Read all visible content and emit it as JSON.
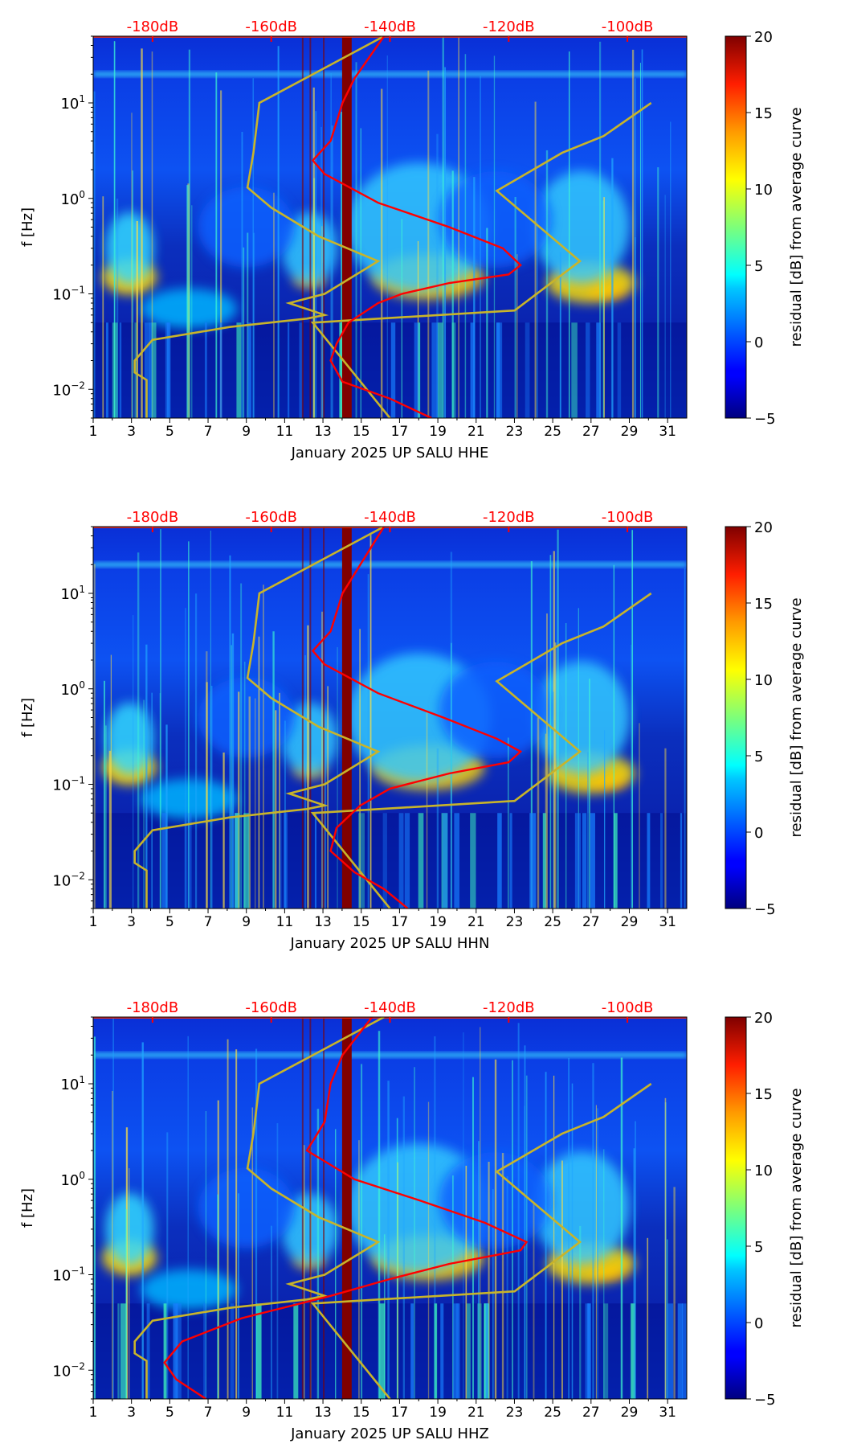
{
  "chart_data": [
    {
      "type": "heatmap",
      "component": "HHE",
      "xlabel": "January 2025 UP SALU  HHE",
      "ylabel": "f [Hz]",
      "x_ticks": [
        "1",
        "3",
        "5",
        "7",
        "9",
        "11",
        "13",
        "15",
        "17",
        "19",
        "21",
        "23",
        "25",
        "27",
        "29",
        "31"
      ],
      "y_ticks": [
        "10^-2",
        "10^-1",
        "10^0",
        "10^1"
      ],
      "ylim_hz": [
        0.005,
        50
      ],
      "xlim_day": [
        1,
        32
      ],
      "top_axis_labels": [
        "-180dB",
        "-160dB",
        "-140dB",
        "-120dB",
        "-100dB"
      ],
      "top_axis_values_db": [
        -180,
        -160,
        -140,
        -120,
        -100
      ],
      "colorbar": {
        "label": "residual [dB] from average curve",
        "ticks": [
          "20",
          "15",
          "10",
          "5",
          "0",
          "−5"
        ],
        "range": [
          -5,
          20
        ]
      },
      "data_gap_day": [
        14.0,
        14.5
      ],
      "noise_model_curve": [
        [
          -181,
          0.005
        ],
        [
          -181,
          0.0125
        ],
        [
          -183,
          0.015
        ],
        [
          -183,
          0.02
        ],
        [
          -180,
          0.033
        ],
        [
          -167,
          0.045
        ],
        [
          -154,
          0.055
        ],
        [
          -151,
          0.06
        ],
        [
          -157,
          0.08
        ],
        [
          -151,
          0.1
        ],
        [
          -142,
          0.22
        ],
        [
          -152,
          0.4
        ],
        [
          -160,
          0.8
        ],
        [
          -164,
          1.3
        ],
        [
          -163,
          3.0
        ],
        [
          -162,
          10
        ],
        [
          -141,
          50
        ]
      ],
      "noise_model_high_curve": [
        [
          -140,
          0.005
        ],
        [
          -153,
          0.05
        ],
        [
          -119,
          0.067
        ],
        [
          -108,
          0.22
        ],
        [
          -122,
          1.2
        ],
        [
          -111,
          3
        ],
        [
          -104,
          4.5
        ],
        [
          -96,
          10
        ]
      ],
      "average_curve": [
        [
          -133,
          0.005
        ],
        [
          -140,
          0.008
        ],
        [
          -148,
          0.012
        ],
        [
          -150,
          0.02
        ],
        [
          -149,
          0.03
        ],
        [
          -147,
          0.05
        ],
        [
          -142,
          0.08
        ],
        [
          -138,
          0.1
        ],
        [
          -130,
          0.13
        ],
        [
          -120,
          0.16
        ],
        [
          -118,
          0.2
        ],
        [
          -121,
          0.3
        ],
        [
          -130,
          0.5
        ],
        [
          -142,
          0.9
        ],
        [
          -151,
          1.8
        ],
        [
          -153,
          2.5
        ],
        [
          -150,
          4
        ],
        [
          -148,
          10
        ],
        [
          -146,
          18
        ],
        [
          -141,
          50
        ]
      ]
    },
    {
      "type": "heatmap",
      "component": "HHN",
      "xlabel": "January 2025 UP SALU  HHN",
      "ylabel": "f [Hz]",
      "x_ticks": [
        "1",
        "3",
        "5",
        "7",
        "9",
        "11",
        "13",
        "15",
        "17",
        "19",
        "21",
        "23",
        "25",
        "27",
        "29",
        "31"
      ],
      "y_ticks": [
        "10^-2",
        "10^-1",
        "10^0",
        "10^1"
      ],
      "ylim_hz": [
        0.005,
        50
      ],
      "xlim_day": [
        1,
        32
      ],
      "top_axis_labels": [
        "-180dB",
        "-160dB",
        "-140dB",
        "-120dB",
        "-100dB"
      ],
      "top_axis_values_db": [
        -180,
        -160,
        -140,
        -120,
        -100
      ],
      "colorbar": {
        "label": "residual [dB] from average curve",
        "ticks": [
          "20",
          "15",
          "10",
          "5",
          "0",
          "−5"
        ],
        "range": [
          -5,
          20
        ]
      },
      "data_gap_day": [
        14.0,
        14.5
      ],
      "noise_model_curve": [
        [
          -181,
          0.005
        ],
        [
          -181,
          0.0125
        ],
        [
          -183,
          0.015
        ],
        [
          -183,
          0.02
        ],
        [
          -180,
          0.033
        ],
        [
          -167,
          0.045
        ],
        [
          -154,
          0.055
        ],
        [
          -151,
          0.06
        ],
        [
          -157,
          0.08
        ],
        [
          -151,
          0.1
        ],
        [
          -142,
          0.22
        ],
        [
          -152,
          0.4
        ],
        [
          -160,
          0.8
        ],
        [
          -164,
          1.3
        ],
        [
          -163,
          3.0
        ],
        [
          -162,
          10
        ],
        [
          -141,
          50
        ]
      ],
      "noise_model_high_curve": [
        [
          -140,
          0.005
        ],
        [
          -153,
          0.05
        ],
        [
          -119,
          0.067
        ],
        [
          -108,
          0.22
        ],
        [
          -122,
          1.2
        ],
        [
          -111,
          3
        ],
        [
          -104,
          4.5
        ],
        [
          -96,
          10
        ]
      ],
      "average_curve": [
        [
          -137,
          0.005
        ],
        [
          -141,
          0.008
        ],
        [
          -146,
          0.012
        ],
        [
          -150,
          0.02
        ],
        [
          -149,
          0.035
        ],
        [
          -145,
          0.06
        ],
        [
          -140,
          0.09
        ],
        [
          -130,
          0.13
        ],
        [
          -120,
          0.17
        ],
        [
          -118,
          0.22
        ],
        [
          -122,
          0.3
        ],
        [
          -131,
          0.5
        ],
        [
          -142,
          0.9
        ],
        [
          -151,
          1.8
        ],
        [
          -153,
          2.5
        ],
        [
          -150,
          4
        ],
        [
          -148,
          10
        ],
        [
          -145,
          20
        ],
        [
          -141,
          50
        ]
      ]
    },
    {
      "type": "heatmap",
      "component": "HHZ",
      "xlabel": "January 2025 UP SALU  HHZ",
      "ylabel": "f [Hz]",
      "x_ticks": [
        "1",
        "3",
        "5",
        "7",
        "9",
        "11",
        "13",
        "15",
        "17",
        "19",
        "21",
        "23",
        "25",
        "27",
        "29",
        "31"
      ],
      "y_ticks": [
        "10^-2",
        "10^-1",
        "10^0",
        "10^1"
      ],
      "ylim_hz": [
        0.005,
        50
      ],
      "xlim_day": [
        1,
        32
      ],
      "top_axis_labels": [
        "-180dB",
        "-160dB",
        "-140dB",
        "-120dB",
        "-100dB"
      ],
      "top_axis_values_db": [
        -180,
        -160,
        -140,
        -120,
        -100
      ],
      "colorbar": {
        "label": "residual [dB] from average curve",
        "ticks": [
          "20",
          "15",
          "10",
          "5",
          "0",
          "−5"
        ],
        "range": [
          -5,
          20
        ]
      },
      "data_gap_day": [
        14.0,
        14.5
      ],
      "noise_model_curve": [
        [
          -181,
          0.005
        ],
        [
          -181,
          0.0125
        ],
        [
          -183,
          0.015
        ],
        [
          -183,
          0.02
        ],
        [
          -180,
          0.033
        ],
        [
          -167,
          0.045
        ],
        [
          -154,
          0.055
        ],
        [
          -151,
          0.06
        ],
        [
          -157,
          0.08
        ],
        [
          -151,
          0.1
        ],
        [
          -142,
          0.22
        ],
        [
          -152,
          0.4
        ],
        [
          -160,
          0.8
        ],
        [
          -164,
          1.3
        ],
        [
          -163,
          3.0
        ],
        [
          -162,
          10
        ],
        [
          -141,
          50
        ]
      ],
      "noise_model_high_curve": [
        [
          -140,
          0.005
        ],
        [
          -153,
          0.05
        ],
        [
          -119,
          0.067
        ],
        [
          -108,
          0.22
        ],
        [
          -122,
          1.2
        ],
        [
          -111,
          3
        ],
        [
          -104,
          4.5
        ],
        [
          -96,
          10
        ]
      ],
      "average_curve": [
        [
          -171,
          0.005
        ],
        [
          -176,
          0.008
        ],
        [
          -178,
          0.012
        ],
        [
          -175,
          0.02
        ],
        [
          -165,
          0.035
        ],
        [
          -150,
          0.06
        ],
        [
          -140,
          0.09
        ],
        [
          -130,
          0.13
        ],
        [
          -118,
          0.18
        ],
        [
          -117,
          0.22
        ],
        [
          -124,
          0.35
        ],
        [
          -135,
          0.6
        ],
        [
          -146,
          1.0
        ],
        [
          -154,
          2.0
        ],
        [
          -153,
          2.5
        ],
        [
          -151,
          4
        ],
        [
          -150,
          10
        ],
        [
          -148,
          20
        ],
        [
          -143,
          50
        ]
      ]
    }
  ],
  "colors": {
    "top_axis_text": "#ff0000",
    "average_curve": "#ff0000",
    "noise_model_curve": "#c8b42a",
    "data_gap": "#800000"
  }
}
